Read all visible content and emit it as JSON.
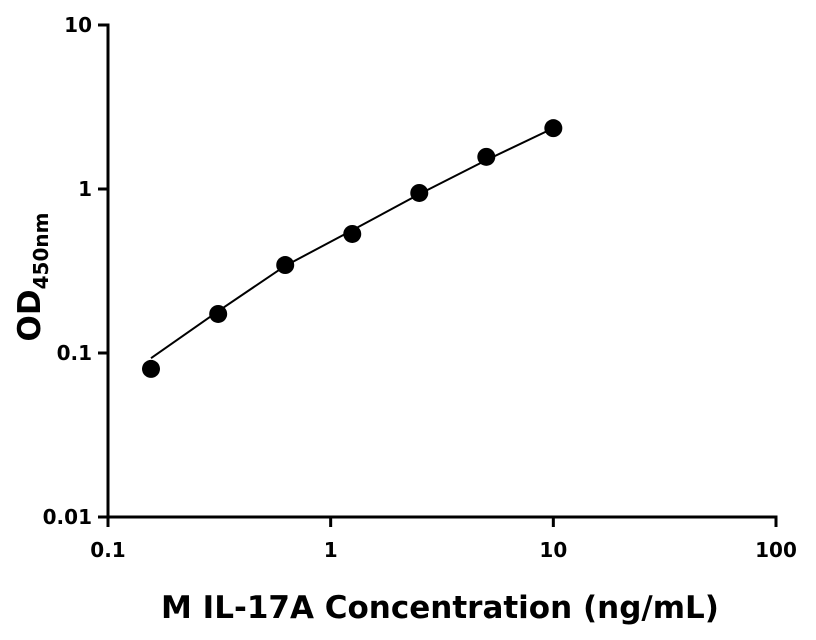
{
  "chart_data": {
    "type": "scatter",
    "x_label": "M IL-17A Concentration (ng/mL)",
    "y_label": "OD",
    "y_label_subscript": "450nm",
    "x": [
      0.156,
      0.3125,
      0.625,
      1.25,
      2.5,
      5,
      10
    ],
    "values": [
      0.08,
      0.173,
      0.344,
      0.532,
      0.946,
      1.57,
      2.35
    ],
    "color": "#000000",
    "curve": {
      "x": [
        0.156,
        0.3125,
        0.625,
        1.25,
        2.5,
        5,
        10
      ],
      "values": [
        0.093,
        0.18,
        0.34,
        0.56,
        0.93,
        1.5,
        2.35
      ]
    },
    "xscale": "log",
    "yscale": "log",
    "xlim": [
      0.1,
      100
    ],
    "ylim": [
      0.01,
      10
    ],
    "xticks": [
      0.1,
      1,
      10,
      100
    ],
    "yticks": [
      0.01,
      0.1,
      1,
      10
    ],
    "grid": false
  }
}
